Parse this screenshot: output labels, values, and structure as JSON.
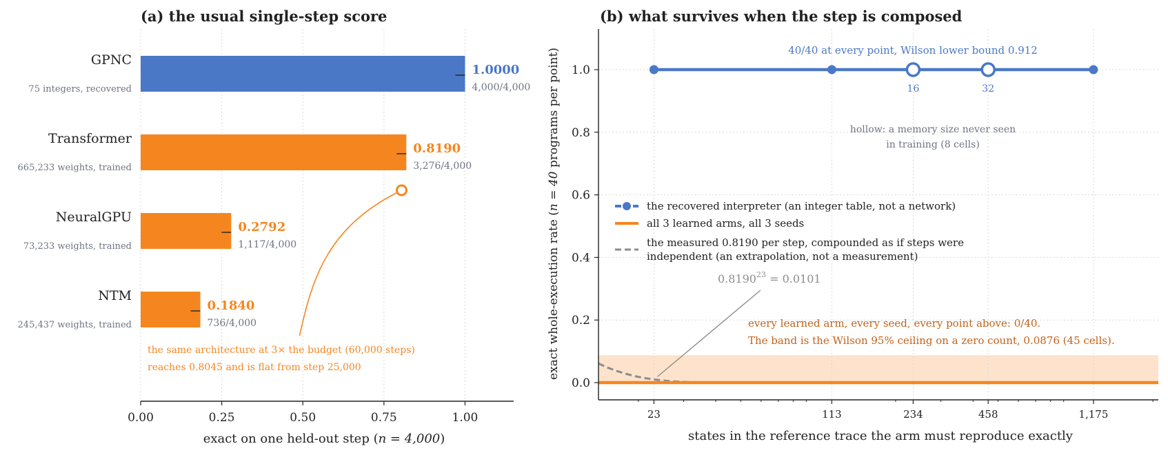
{
  "colors": {
    "blue": "#4a78c6",
    "orange": "#f5861f",
    "orange_dark": "#c0631a",
    "gray_text": "#6f7382",
    "dashed_gray": "#8c8c8c",
    "band": "#fde3cc",
    "grid": "#d9d9d9",
    "axis": "#222222"
  },
  "chart_data": [
    {
      "type": "bar",
      "orientation": "horizontal",
      "title": "(a)  the usual single-step score",
      "xlabel_pre": "exact on one held-out step (",
      "xlabel_math": "n = 4,000",
      "xlabel_post": ")",
      "xlim": [
        0,
        1.15
      ],
      "xticks": [
        0,
        0.25,
        0.5,
        0.75,
        1.0
      ],
      "xtick_labels": [
        "0.00",
        "0.25",
        "0.50",
        "0.75",
        "1.00"
      ],
      "grid": true,
      "categories": [
        {
          "name": "GPNC",
          "sub": "75 integers, recovered",
          "value": 1.0,
          "value_label": "1.0000",
          "count_label": "4,000/4,000",
          "color": "blue"
        },
        {
          "name": "Transformer",
          "sub": "665,233 weights, trained",
          "value": 0.819,
          "value_label": "0.8190",
          "count_label": "3,276/4,000",
          "color": "orange"
        },
        {
          "name": "NeuralGPU",
          "sub": "73,233 weights, trained",
          "value": 0.2792,
          "value_label": "0.2792",
          "count_label": "1,117/4,000",
          "color": "orange"
        },
        {
          "name": "NTM",
          "sub": "245,437 weights, trained",
          "value": 0.184,
          "value_label": "0.1840",
          "count_label": "736/4,000",
          "color": "orange"
        }
      ],
      "extra_point": {
        "category": "Transformer",
        "value": 0.8045
      },
      "annotation": [
        "the same architecture at 3× the budget (60,000 steps)",
        "reaches 0.8045 and is flat from step 25,000"
      ]
    },
    {
      "type": "line",
      "x_scale": "log",
      "title": "(b)  what survives when the step is composed",
      "xlabel": "states in the reference trace the arm must reproduce exactly",
      "ylabel_pre": "exact whole-execution rate (",
      "ylabel_math": "n = 40",
      "ylabel_post": " programs per point)",
      "xlim": [
        14,
        2100
      ],
      "ylim": [
        -0.055,
        1.13
      ],
      "xticks": [
        23,
        113,
        234,
        458,
        1175
      ],
      "xtick_labels": [
        "23",
        "113",
        "234",
        "458",
        "1,175"
      ],
      "yticks": [
        0.0,
        0.2,
        0.4,
        0.6,
        0.8,
        1.0
      ],
      "ytick_labels": [
        "0.0",
        "0.2",
        "0.4",
        "0.6",
        "0.8",
        "1.0"
      ],
      "grid": true,
      "legend_position": "center-left",
      "series": [
        {
          "name": "the recovered interpreter (an integer table, not a network)",
          "style": "solid-markers",
          "color": "blue",
          "x": [
            23,
            113,
            234,
            458,
            1175
          ],
          "y": [
            1.0,
            1.0,
            1.0,
            1.0,
            1.0
          ],
          "hollow": [
            false,
            false,
            true,
            true,
            false
          ]
        },
        {
          "name": "all 3 learned arms, all 3 seeds",
          "style": "solid",
          "color": "orange",
          "x": [
            14,
            2100
          ],
          "y": [
            0.0,
            0.0
          ]
        },
        {
          "name": "the measured 0.8190 per step, compounded as if steps were independent (an extrapolation, not a measurement)",
          "legend_lines": [
            "the measured 0.8190 per step, compounded as if steps were",
            "independent (an extrapolation, not a measurement)"
          ],
          "style": "dashed",
          "color": "dashed_gray",
          "base": 0.819
        }
      ],
      "band": {
        "ymin": 0,
        "ymax": 0.0876
      },
      "annotations": {
        "top": "40/40 at every point, Wilson lower bound 0.912",
        "hollow_labels": [
          "16",
          "32"
        ],
        "hollow_note": [
          "hollow: a memory size never seen",
          "in training (8 cells)"
        ],
        "formula_base": "0.8190",
        "formula_exp": "23",
        "formula_rhs": " = 0.0101",
        "formula_point": {
          "x": 23,
          "y": 0.0101
        },
        "orange_note": [
          "every learned arm, every seed, every point above: 0/40.",
          "The band is the Wilson 95% ceiling on a zero count, 0.0876 (45 cells)."
        ]
      }
    }
  ]
}
